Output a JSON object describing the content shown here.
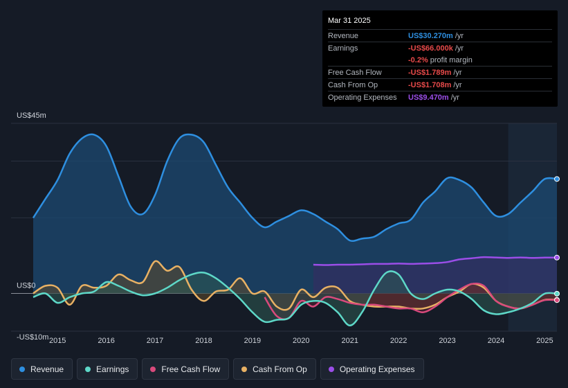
{
  "chart_data": {
    "type": "area",
    "y_unit_label_top": "US$45m",
    "y_zero_label": "US$0",
    "y_bottom_label": "-US$10m",
    "ylim": [
      -10,
      45
    ],
    "xlim": [
      2014.5,
      2025.25
    ],
    "x_ticks": [
      "2015",
      "2016",
      "2017",
      "2018",
      "2019",
      "2020",
      "2021",
      "2022",
      "2023",
      "2024",
      "2025"
    ],
    "series": [
      {
        "name": "Revenue",
        "color": "#2e8fe0",
        "fill": "#1c4a72",
        "x": [
          2014.5,
          2014.75,
          2015.0,
          2015.25,
          2015.5,
          2015.75,
          2016.0,
          2016.25,
          2016.5,
          2016.75,
          2017.0,
          2017.25,
          2017.5,
          2017.75,
          2018.0,
          2018.25,
          2018.5,
          2018.75,
          2019.0,
          2019.25,
          2019.5,
          2019.75,
          2020.0,
          2020.25,
          2020.5,
          2020.75,
          2021.0,
          2021.25,
          2021.5,
          2021.75,
          2022.0,
          2022.25,
          2022.5,
          2022.75,
          2023.0,
          2023.25,
          2023.5,
          2023.75,
          2024.0,
          2024.25,
          2024.5,
          2024.75,
          2025.0,
          2025.25
        ],
        "values": [
          20,
          25,
          30,
          37,
          41,
          42,
          39,
          31,
          23,
          21,
          26,
          35,
          41,
          42,
          40,
          34,
          28,
          24,
          20,
          17.5,
          19,
          20.5,
          22,
          21,
          19,
          17,
          14,
          14.5,
          15,
          17,
          18.5,
          19.5,
          24,
          27,
          30.5,
          30,
          28,
          24,
          20.5,
          21,
          24,
          27,
          30.27,
          30.27
        ]
      },
      {
        "name": "Earnings",
        "color": "#5ed8c8",
        "fill": "#2d5a52",
        "x": [
          2014.5,
          2014.75,
          2015.0,
          2015.25,
          2015.5,
          2015.75,
          2016.0,
          2016.25,
          2016.5,
          2016.75,
          2017.0,
          2017.25,
          2017.5,
          2017.75,
          2018.0,
          2018.25,
          2018.5,
          2018.75,
          2019.0,
          2019.25,
          2019.5,
          2019.75,
          2020.0,
          2020.25,
          2020.5,
          2020.75,
          2021.0,
          2021.25,
          2021.5,
          2021.75,
          2022.0,
          2022.25,
          2022.5,
          2022.75,
          2023.0,
          2023.25,
          2023.5,
          2023.75,
          2024.0,
          2024.25,
          2024.5,
          2024.75,
          2025.0,
          2025.25
        ],
        "values": [
          -1,
          0,
          -2.5,
          -1,
          0,
          0.5,
          3,
          2,
          0.5,
          -0.5,
          0,
          1.5,
          3.5,
          5,
          5.5,
          4,
          1.5,
          -1.5,
          -5,
          -7.5,
          -7,
          -6.5,
          -3,
          -2,
          -2.5,
          -5,
          -8.5,
          -5,
          1,
          5.5,
          5,
          0,
          -1.5,
          0,
          1,
          0.5,
          -1.5,
          -4.5,
          -5.5,
          -5,
          -4,
          -2.5,
          -0.066,
          -0.066
        ]
      },
      {
        "name": "Free Cash Flow",
        "color": "#d94a7c",
        "fill": "#5c1f33",
        "x": [
          2019.25,
          2019.5,
          2019.75,
          2020.0,
          2020.25,
          2020.5,
          2020.75,
          2021.0,
          2021.25,
          2021.5,
          2021.75,
          2022.0,
          2022.25,
          2022.5,
          2022.75,
          2023.0,
          2023.25,
          2023.5,
          2023.75,
          2024.0,
          2024.25,
          2024.5,
          2024.75,
          2025.0,
          2025.25
        ],
        "values": [
          -1,
          -6,
          -6.5,
          -2,
          -3.5,
          -1,
          -1.5,
          -2.5,
          -3,
          -3,
          -3.5,
          -4,
          -4,
          -5,
          -3.5,
          -1,
          1,
          2.5,
          2,
          -2,
          -3.5,
          -4,
          -3,
          -1.789,
          -1.789
        ]
      },
      {
        "name": "Cash From Op",
        "color": "#e8b164",
        "fill": "#5e4a2c",
        "x": [
          2014.5,
          2014.75,
          2015.0,
          2015.25,
          2015.5,
          2015.75,
          2016.0,
          2016.25,
          2016.5,
          2016.75,
          2017.0,
          2017.25,
          2017.5,
          2017.75,
          2018.0,
          2018.25,
          2018.5,
          2018.75,
          2019.0,
          2019.25,
          2019.5,
          2019.75,
          2020.0,
          2020.25,
          2020.5,
          2020.75,
          2021.0,
          2021.25,
          2021.5,
          2021.75,
          2022.0,
          2022.25,
          2022.5,
          2022.75,
          2023.0,
          2023.25,
          2023.5,
          2023.75,
          2024.0,
          2024.25,
          2024.5,
          2024.75,
          2025.0,
          2025.25
        ],
        "values": [
          0,
          2,
          1.5,
          -3,
          2,
          1.5,
          2,
          5,
          3.5,
          3,
          8.5,
          6,
          7,
          1,
          -2,
          0.5,
          1,
          4,
          0,
          0.5,
          -3.5,
          -4,
          1,
          -1,
          1.5,
          1.5,
          -2,
          -3,
          -3.5,
          -3.5,
          -3.5,
          -4,
          -4,
          -3,
          -1,
          0.5,
          2.5,
          1.5,
          -2,
          -3.5,
          -4,
          -3,
          -1.708,
          -1.708
        ]
      },
      {
        "name": "Operating Expenses",
        "color": "#9b4ee8",
        "fill": "#3b2a63",
        "x": [
          2020.25,
          2020.5,
          2020.75,
          2021.0,
          2021.25,
          2021.5,
          2021.75,
          2022.0,
          2022.25,
          2022.5,
          2022.75,
          2023.0,
          2023.25,
          2023.5,
          2023.75,
          2024.0,
          2024.25,
          2024.5,
          2024.75,
          2025.0,
          2025.25
        ],
        "values": [
          7.6,
          7.5,
          7.6,
          7.6,
          7.7,
          7.8,
          7.8,
          7.9,
          7.8,
          7.9,
          8,
          8.3,
          9,
          9.3,
          9.6,
          9.5,
          9.4,
          9.5,
          9.4,
          9.47,
          9.47
        ]
      }
    ]
  },
  "tooltip": {
    "date": "Mar 31 2025",
    "rows": [
      {
        "label": "Revenue",
        "value": "US$30.270m",
        "unit": "/yr",
        "color": "#2e8fe0"
      },
      {
        "label": "Earnings",
        "value": "-US$66.000k",
        "unit": "/yr",
        "color": "#e84a4a"
      },
      {
        "label": "",
        "value": "-0.2%",
        "unit": "profit margin",
        "color": "#e84a4a"
      },
      {
        "label": "Free Cash Flow",
        "value": "-US$1.789m",
        "unit": "/yr",
        "color": "#e84a4a"
      },
      {
        "label": "Cash From Op",
        "value": "-US$1.708m",
        "unit": "/yr",
        "color": "#e84a4a"
      },
      {
        "label": "Operating Expenses",
        "value": "US$9.470m",
        "unit": "/yr",
        "color": "#9b4ee8"
      }
    ]
  },
  "legend": [
    {
      "label": "Revenue",
      "color": "#2e8fe0"
    },
    {
      "label": "Earnings",
      "color": "#5ed8c8"
    },
    {
      "label": "Free Cash Flow",
      "color": "#d94a7c"
    },
    {
      "label": "Cash From Op",
      "color": "#e8b164"
    },
    {
      "label": "Operating Expenses",
      "color": "#9b4ee8"
    }
  ]
}
